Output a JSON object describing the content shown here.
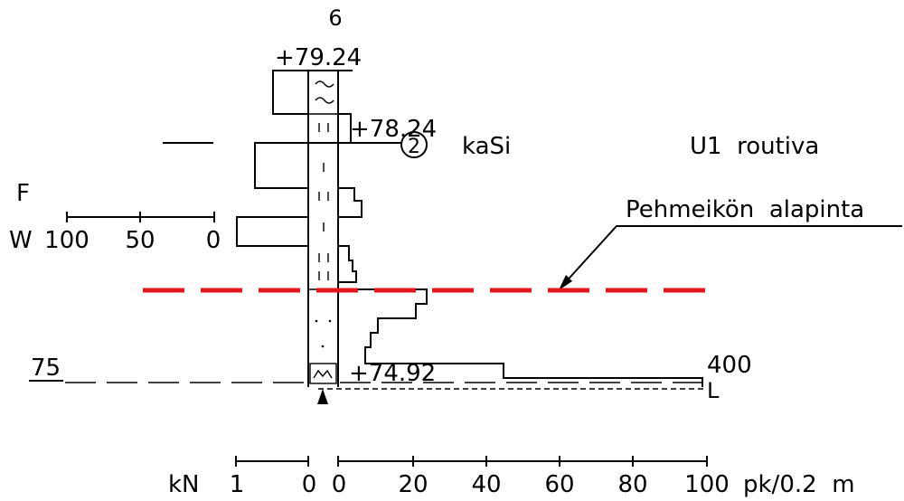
{
  "profile": {
    "point_id": "6",
    "top_elevation": "+79.24",
    "mid_elevation": "+78.24",
    "bottom_elevation": "+74.92",
    "sample_number": "2",
    "soil_code": "kaSi",
    "classification": "U1  routiva",
    "soft_layer_label": "Pehmeikön  alapinta",
    "max_value_label": "400",
    "end_symbol": "L",
    "level_label": "75"
  },
  "weight_scale": {
    "f_label": "F",
    "w_label": "W",
    "ticks": [
      "100",
      "50",
      "0"
    ]
  },
  "bottom_scale": {
    "kn_unit": "kN",
    "kn_ticks": [
      "1",
      "0"
    ],
    "pk_ticks": [
      "0",
      "20",
      "40",
      "60",
      "80",
      "100"
    ],
    "pk_unit": "pk/0.2  m"
  },
  "colors": {
    "line": "#000000",
    "soft_layer_boundary": "#e4171d",
    "background": "#ffffff"
  }
}
